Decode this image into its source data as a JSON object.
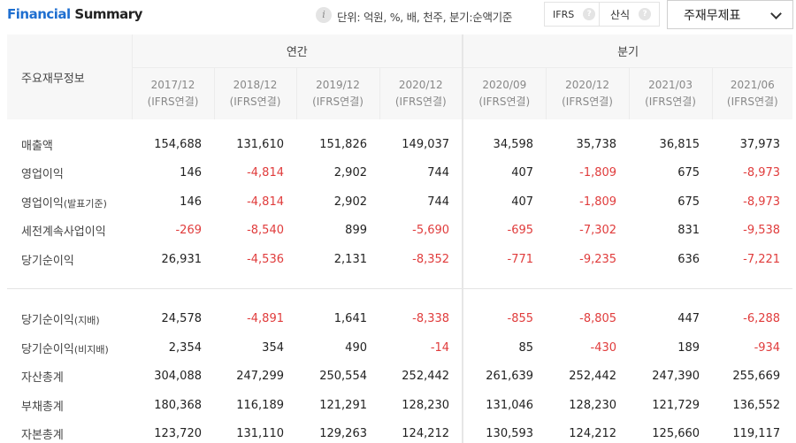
{
  "header": {
    "title_part1": "Financial",
    "title_part2": "Summary",
    "info_icon": "i",
    "unit_text": "단위: 억원, %, 배, 천주, 분기:순액기준",
    "ifrs_label": "IFRS",
    "formula_label": "산식",
    "help_icon": "?",
    "select_value": "주재무제표"
  },
  "table": {
    "corner_label": "주요재무정보",
    "group_annual": "연간",
    "group_quarterly": "분기",
    "periods": [
      {
        "date": "2017/12",
        "basis": "(IFRS연결)"
      },
      {
        "date": "2018/12",
        "basis": "(IFRS연결)"
      },
      {
        "date": "2019/12",
        "basis": "(IFRS연결)"
      },
      {
        "date": "2020/12",
        "basis": "(IFRS연결)"
      },
      {
        "date": "2020/09",
        "basis": "(IFRS연결)"
      },
      {
        "date": "2020/12",
        "basis": "(IFRS연결)"
      },
      {
        "date": "2021/03",
        "basis": "(IFRS연결)"
      },
      {
        "date": "2021/06",
        "basis": "(IFRS연결)"
      }
    ],
    "rows": [
      {
        "label": "매출액",
        "suffix": "",
        "values": [
          "154,688",
          "131,610",
          "151,826",
          "149,037",
          "34,598",
          "35,738",
          "36,815",
          "37,973"
        ]
      },
      {
        "label": "영업이익",
        "suffix": "",
        "values": [
          "146",
          "-4,814",
          "2,902",
          "744",
          "407",
          "-1,809",
          "675",
          "-8,973"
        ]
      },
      {
        "label": "영업이익",
        "suffix": "(발표기준)",
        "values": [
          "146",
          "-4,814",
          "2,902",
          "744",
          "407",
          "-1,809",
          "675",
          "-8,973"
        ]
      },
      {
        "label": "세전계속사업이익",
        "suffix": "",
        "values": [
          "-269",
          "-8,540",
          "899",
          "-5,690",
          "-695",
          "-7,302",
          "831",
          "-9,538"
        ]
      },
      {
        "label": "당기순이익",
        "suffix": "",
        "values": [
          "26,931",
          "-4,536",
          "2,131",
          "-8,352",
          "-771",
          "-9,235",
          "636",
          "-7,221"
        ]
      },
      {
        "label": "당기순이익",
        "suffix": "(지배)",
        "values": [
          "24,578",
          "-4,891",
          "1,641",
          "-8,338",
          "-855",
          "-8,805",
          "447",
          "-6,288"
        ]
      },
      {
        "label": "당기순이익",
        "suffix": "(비지배)",
        "values": [
          "2,354",
          "354",
          "490",
          "-14",
          "85",
          "-430",
          "189",
          "-934"
        ]
      },
      {
        "label": "자산총계",
        "suffix": "",
        "values": [
          "304,088",
          "247,299",
          "250,554",
          "252,442",
          "261,639",
          "252,442",
          "247,390",
          "255,669"
        ]
      },
      {
        "label": "부채총계",
        "suffix": "",
        "values": [
          "180,368",
          "116,189",
          "121,291",
          "128,230",
          "131,046",
          "128,230",
          "121,729",
          "136,552"
        ]
      },
      {
        "label": "자본총계",
        "suffix": "",
        "values": [
          "123,720",
          "131,110",
          "129,263",
          "124,212",
          "130,593",
          "124,212",
          "125,660",
          "119,117"
        ]
      }
    ]
  },
  "colors": {
    "accent": "#1f6fd0",
    "negative": "#e03c3c"
  }
}
